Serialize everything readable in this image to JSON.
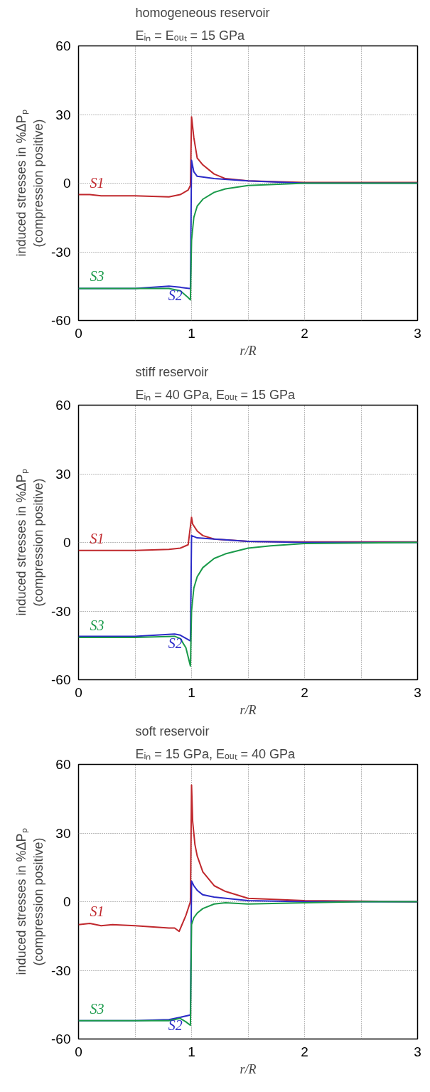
{
  "chart_data": [
    {
      "type": "line",
      "title": "homogeneous reservoir",
      "subtitle": "Eᵢₙ = Eₒᵤₜ = 15 GPa",
      "xlabel": "r/R",
      "ylabel": "induced stresses in %ΔPₚ\n(compression positive)",
      "xlim": [
        0,
        3
      ],
      "ylim": [
        -60,
        60
      ],
      "xticks": [
        0,
        {
          "value": 0.5,
          "label": null
        },
        1,
        {
          "value": 1.5,
          "label": null
        },
        2,
        {
          "value": 2.5,
          "label": null
        },
        3
      ],
      "yticks": [
        -60,
        -30,
        0,
        30,
        60
      ],
      "grid": true,
      "line_style": "solid",
      "marker": "none",
      "series": [
        {
          "name": "S1",
          "color": "#c0282d",
          "x": [
            0,
            0.1,
            0.2,
            0.5,
            0.8,
            0.9,
            0.97,
            0.99,
            1.0,
            1.02,
            1.05,
            1.1,
            1.2,
            1.3,
            1.5,
            2,
            3
          ],
          "values": [
            -5,
            -5,
            -5.5,
            -5.5,
            -6,
            -5,
            -3,
            -1,
            29,
            20,
            11,
            8,
            4,
            2,
            1,
            0.3,
            0.3
          ]
        },
        {
          "name": "S2",
          "color": "#2b2bc8",
          "x": [
            0,
            0.5,
            0.8,
            0.9,
            0.98,
            0.99,
            1.0,
            1.02,
            1.05,
            1.2,
            1.5,
            2,
            3
          ],
          "values": [
            -46,
            -46,
            -45,
            -45.5,
            -46,
            -46,
            10,
            5,
            3,
            2,
            1,
            0,
            0
          ]
        },
        {
          "name": "S3",
          "color": "#1a9a4a",
          "x": [
            0,
            0.5,
            0.8,
            0.9,
            0.97,
            0.99,
            1.0,
            1.02,
            1.05,
            1.1,
            1.2,
            1.3,
            1.5,
            2,
            3
          ],
          "values": [
            -46,
            -46,
            -46,
            -47,
            -50,
            -51,
            -25,
            -15,
            -10,
            -7,
            -4,
            -2.5,
            -1,
            0,
            0
          ]
        }
      ]
    },
    {
      "type": "line",
      "title": "stiff reservoir",
      "subtitle": "Eᵢₙ = 40 GPa, Eₒᵤₜ = 15 GPa",
      "xlabel": "r/R",
      "ylabel": "induced stresses in %ΔPₚ\n(compression positive)",
      "xlim": [
        0,
        3
      ],
      "ylim": [
        -60,
        60
      ],
      "xticks": [
        0,
        {
          "value": 0.5,
          "label": null
        },
        1,
        {
          "value": 1.5,
          "label": null
        },
        2,
        {
          "value": 2.5,
          "label": null
        },
        3
      ],
      "yticks": [
        -60,
        -30,
        0,
        30,
        60
      ],
      "grid": true,
      "line_style": "solid",
      "marker": "none",
      "series": [
        {
          "name": "S1",
          "color": "#c0282d",
          "x": [
            0,
            0.5,
            0.8,
            0.9,
            0.97,
            1.0,
            1.01,
            1.05,
            1.1,
            1.2,
            1.5,
            2,
            3
          ],
          "values": [
            -3.5,
            -3.5,
            -3,
            -2.5,
            -1,
            11,
            8,
            5,
            3,
            1.5,
            0.5,
            0.2,
            0.2
          ]
        },
        {
          "name": "S2",
          "color": "#2b2bc8",
          "x": [
            0,
            0.5,
            0.85,
            0.9,
            0.99,
            1.0,
            1.05,
            1.2,
            1.5,
            2,
            3
          ],
          "values": [
            -41,
            -41,
            -40,
            -40.5,
            -43,
            3,
            2,
            1.5,
            0.5,
            0,
            0
          ]
        },
        {
          "name": "S3",
          "color": "#1a9a4a",
          "x": [
            0,
            0.5,
            0.85,
            0.9,
            0.95,
            0.99,
            1.0,
            1.02,
            1.05,
            1.1,
            1.2,
            1.3,
            1.5,
            1.7,
            2,
            3
          ],
          "values": [
            -41.5,
            -41.5,
            -41,
            -42,
            -46,
            -54,
            -30,
            -20,
            -15,
            -11,
            -7,
            -5,
            -2.5,
            -1.5,
            -0.5,
            0
          ]
        }
      ]
    },
    {
      "type": "line",
      "title": "soft reservoir",
      "subtitle": "Eᵢₙ = 15 GPa, Eₒᵤₜ = 40 GPa",
      "xlabel": "r/R",
      "ylabel": "induced stresses in %ΔPₚ\n(compression positive)",
      "xlim": [
        0,
        3
      ],
      "ylim": [
        -60,
        60
      ],
      "xticks": [
        0,
        {
          "value": 0.5,
          "label": null
        },
        1,
        {
          "value": 1.5,
          "label": null
        },
        2,
        {
          "value": 2.5,
          "label": null
        },
        3
      ],
      "yticks": [
        -60,
        -30,
        0,
        30,
        60
      ],
      "grid": true,
      "line_style": "solid",
      "marker": "none",
      "series": [
        {
          "name": "S1",
          "color": "#c0282d",
          "x": [
            0,
            0.1,
            0.2,
            0.3,
            0.5,
            0.8,
            0.85,
            0.89,
            0.95,
            0.99,
            1.0,
            1.01,
            1.03,
            1.05,
            1.1,
            1.2,
            1.3,
            1.5,
            2,
            3
          ],
          "values": [
            -10,
            -9.5,
            -10.5,
            -10,
            -10.5,
            -11.5,
            -11.5,
            -13,
            -6,
            0,
            51,
            35,
            25,
            20,
            13,
            7,
            4.5,
            1.5,
            0.5,
            0
          ]
        },
        {
          "name": "S2",
          "color": "#2b2bc8",
          "x": [
            0,
            0.5,
            0.8,
            0.9,
            0.99,
            1.0,
            1.02,
            1.05,
            1.1,
            1.2,
            1.5,
            2,
            3
          ],
          "values": [
            -52,
            -52,
            -51.5,
            -50.5,
            -49.5,
            9,
            7,
            5,
            3,
            2,
            0.5,
            0,
            0
          ]
        },
        {
          "name": "S3",
          "color": "#1a9a4a",
          "x": [
            0,
            0.5,
            0.8,
            0.9,
            0.95,
            0.99,
            1.0,
            1.02,
            1.05,
            1.1,
            1.2,
            1.3,
            1.5,
            2,
            2.5,
            3
          ],
          "values": [
            -52,
            -52,
            -52,
            -51,
            -52.5,
            -54,
            -10,
            -7,
            -5,
            -3,
            -1,
            -0.5,
            -1,
            -0.5,
            0,
            0
          ]
        }
      ]
    }
  ]
}
